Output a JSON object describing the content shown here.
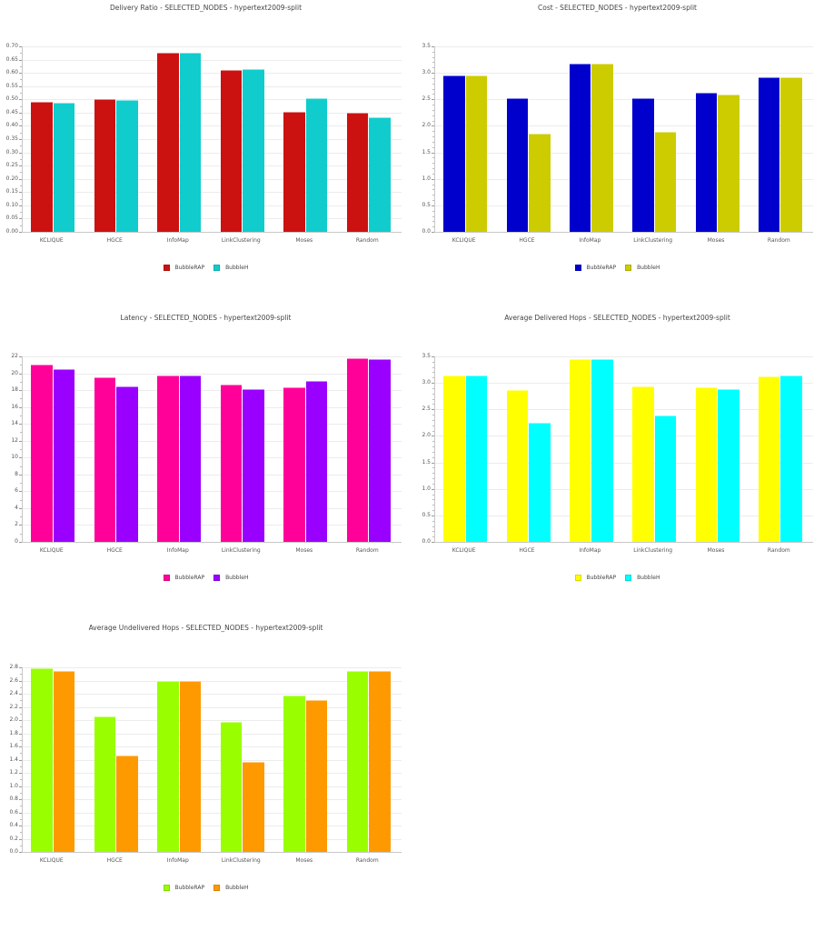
{
  "chart_data": [
    {
      "type": "bar",
      "title": "Delivery Ratio - SELECTED_NODES - hypertext2009-split",
      "xlabel": "",
      "ylabel": "",
      "categories": [
        "KCLIQUE",
        "HGCE",
        "InfoMap",
        "LinkClustering",
        "Moses",
        "Random"
      ],
      "series": [
        {
          "name": "BubbleRAP",
          "color": "#cc1111",
          "values": [
            0.491,
            0.5,
            0.675,
            0.61,
            0.452,
            0.45
          ]
        },
        {
          "name": "BubbleH",
          "color": "#11cccc",
          "values": [
            0.488,
            0.497,
            0.675,
            0.614,
            0.505,
            0.434
          ]
        }
      ],
      "ylim": [
        0,
        0.7
      ],
      "yticks": [
        "0.00",
        "0.05",
        "0.10",
        "0.15",
        "0.20",
        "0.25",
        "0.30",
        "0.35",
        "0.40",
        "0.45",
        "0.50",
        "0.55",
        "0.60",
        "0.65",
        "0.70"
      ],
      "grid": true,
      "legend_position": "bottom"
    },
    {
      "type": "bar",
      "title": "Cost - SELECTED_NODES - hypertext2009-split",
      "xlabel": "",
      "ylabel": "",
      "categories": [
        "KCLIQUE",
        "HGCE",
        "InfoMap",
        "LinkClustering",
        "Moses",
        "Random"
      ],
      "series": [
        {
          "name": "BubbleRAP",
          "color": "#0000cc",
          "values": [
            2.95,
            2.52,
            3.17,
            2.52,
            2.62,
            2.92
          ]
        },
        {
          "name": "BubbleH",
          "color": "#cccc00",
          "values": [
            2.95,
            1.85,
            3.17,
            1.88,
            2.59,
            2.91
          ]
        }
      ],
      "ylim": [
        0,
        3.5
      ],
      "yticks": [
        "0.0",
        "0.5",
        "1.0",
        "1.5",
        "2.0",
        "2.5",
        "3.0",
        "3.5"
      ],
      "grid": true,
      "legend_position": "bottom"
    },
    {
      "type": "bar",
      "title": "Latency - SELECTED_NODES - hypertext2009-split",
      "xlabel": "",
      "ylabel": "",
      "categories": [
        "KCLIQUE",
        "HGCE",
        "InfoMap",
        "LinkClustering",
        "Moses",
        "Random"
      ],
      "series": [
        {
          "name": "BubbleRAP",
          "color": "#ff0099",
          "values": [
            21.0,
            19.5,
            19.7,
            18.7,
            18.3,
            21.8
          ]
        },
        {
          "name": "BubbleH",
          "color": "#9900ff",
          "values": [
            20.5,
            18.4,
            19.7,
            18.1,
            19.1,
            21.7
          ]
        }
      ],
      "ylim": [
        0,
        22
      ],
      "yticks": [
        "0",
        "2",
        "4",
        "6",
        "8",
        "10",
        "12",
        "14",
        "16",
        "18",
        "20",
        "22"
      ],
      "grid": true,
      "legend_position": "bottom"
    },
    {
      "type": "bar",
      "title": "Average Delivered Hops - SELECTED_NODES - hypertext2009-split",
      "xlabel": "",
      "ylabel": "",
      "categories": [
        "KCLIQUE",
        "HGCE",
        "InfoMap",
        "LinkClustering",
        "Moses",
        "Random"
      ],
      "series": [
        {
          "name": "BubbleRAP",
          "color": "#ffff00",
          "values": [
            3.14,
            2.86,
            3.45,
            2.93,
            2.92,
            3.13
          ]
        },
        {
          "name": "BubbleH",
          "color": "#00ffff",
          "values": [
            3.14,
            2.24,
            3.45,
            2.39,
            2.88,
            3.14
          ]
        }
      ],
      "ylim": [
        0,
        3.5
      ],
      "yticks": [
        "0.0",
        "0.5",
        "1.0",
        "1.5",
        "2.0",
        "2.5",
        "3.0",
        "3.5"
      ],
      "grid": true,
      "legend_position": "bottom"
    },
    {
      "type": "bar",
      "title": "Average Undelivered Hops - SELECTED_NODES - hypertext2009-split",
      "xlabel": "",
      "ylabel": "",
      "categories": [
        "KCLIQUE",
        "HGCE",
        "InfoMap",
        "LinkClustering",
        "Moses",
        "Random"
      ],
      "series": [
        {
          "name": "BubbleRAP",
          "color": "#99ff00",
          "values": [
            2.78,
            2.05,
            2.59,
            1.97,
            2.37,
            2.74
          ]
        },
        {
          "name": "BubbleH",
          "color": "#ff9900",
          "values": [
            2.74,
            1.46,
            2.59,
            1.37,
            2.3,
            2.74
          ]
        }
      ],
      "ylim": [
        0,
        2.8
      ],
      "yticks": [
        "0.0",
        "0.2",
        "0.4",
        "0.6",
        "0.8",
        "1.0",
        "1.2",
        "1.4",
        "1.6",
        "1.8",
        "2.0",
        "2.2",
        "2.4",
        "2.6",
        "2.8"
      ],
      "grid": true,
      "legend_position": "bottom"
    }
  ]
}
